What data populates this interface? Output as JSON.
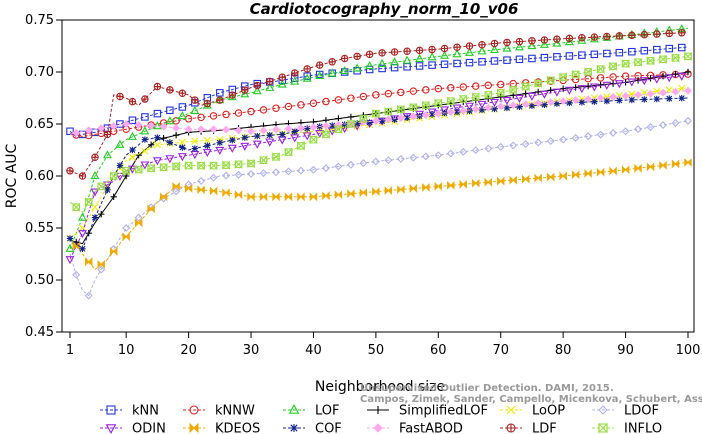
{
  "chart_data": {
    "type": "line",
    "title": "Cardiotocography_norm_10_v06",
    "xlabel": "Neighborhood size",
    "ylabel": "ROC AUC",
    "xlim": [
      1,
      100
    ],
    "ylim": [
      0.45,
      0.75
    ],
    "xticks": [
      1,
      10,
      20,
      30,
      40,
      50,
      60,
      70,
      80,
      90,
      100
    ],
    "yticks": [
      0.45,
      0.5,
      0.55,
      0.6,
      0.65,
      0.7,
      0.75
    ],
    "ytick_labels": [
      "0.45",
      "0.50",
      "0.55",
      "0.60",
      "0.65",
      "0.70",
      "0.75"
    ],
    "grid": false,
    "legend_position": "bottom",
    "watermark_lines": [
      "Unsupervised Outlier Detection. DAMI, 2015.",
      "Campos, Zimek, Sander, Campello, Micenkova, Schubert, Assent, Houle"
    ],
    "series": [
      {
        "name": "kNN",
        "color": "#2233dd",
        "marker": "square",
        "points": [
          [
            1,
            0.643
          ],
          [
            2,
            0.638
          ],
          [
            3,
            0.64
          ],
          [
            5,
            0.642
          ],
          [
            8,
            0.648
          ],
          [
            10,
            0.652
          ],
          [
            15,
            0.66
          ],
          [
            20,
            0.668
          ],
          [
            25,
            0.68
          ],
          [
            30,
            0.688
          ],
          [
            35,
            0.692
          ],
          [
            40,
            0.697
          ],
          [
            50,
            0.703
          ],
          [
            60,
            0.707
          ],
          [
            70,
            0.711
          ],
          [
            80,
            0.715
          ],
          [
            90,
            0.719
          ],
          [
            100,
            0.724
          ]
        ]
      },
      {
        "name": "kNNW",
        "color": "#dd2222",
        "marker": "circle",
        "points": [
          [
            1,
            0.641
          ],
          [
            3,
            0.638
          ],
          [
            5,
            0.64
          ],
          [
            8,
            0.643
          ],
          [
            10,
            0.645
          ],
          [
            15,
            0.65
          ],
          [
            20,
            0.655
          ],
          [
            30,
            0.662
          ],
          [
            40,
            0.67
          ],
          [
            50,
            0.678
          ],
          [
            60,
            0.684
          ],
          [
            70,
            0.688
          ],
          [
            80,
            0.692
          ],
          [
            90,
            0.696
          ],
          [
            100,
            0.698
          ]
        ]
      },
      {
        "name": "LOF",
        "color": "#22cc22",
        "marker": "triangle-up",
        "points": [
          [
            1,
            0.53
          ],
          [
            3,
            0.56
          ],
          [
            5,
            0.6
          ],
          [
            7,
            0.62
          ],
          [
            10,
            0.635
          ],
          [
            13,
            0.643
          ],
          [
            15,
            0.648
          ],
          [
            20,
            0.66
          ],
          [
            25,
            0.673
          ],
          [
            30,
            0.68
          ],
          [
            35,
            0.688
          ],
          [
            40,
            0.695
          ],
          [
            50,
            0.707
          ],
          [
            60,
            0.715
          ],
          [
            70,
            0.722
          ],
          [
            80,
            0.728
          ],
          [
            90,
            0.735
          ],
          [
            100,
            0.742
          ]
        ]
      },
      {
        "name": "SimplifiedLOF",
        "color": "#000000",
        "marker": "plus",
        "points": [
          [
            1,
            0.538
          ],
          [
            3,
            0.535
          ],
          [
            5,
            0.555
          ],
          [
            8,
            0.58
          ],
          [
            10,
            0.6
          ],
          [
            12,
            0.62
          ],
          [
            15,
            0.635
          ],
          [
            20,
            0.642
          ],
          [
            25,
            0.644
          ],
          [
            30,
            0.647
          ],
          [
            35,
            0.65
          ],
          [
            40,
            0.652
          ],
          [
            50,
            0.66
          ],
          [
            60,
            0.668
          ],
          [
            70,
            0.676
          ],
          [
            80,
            0.684
          ],
          [
            90,
            0.69
          ],
          [
            100,
            0.7
          ]
        ]
      },
      {
        "name": "LoOP",
        "color": "#eeee00",
        "marker": "x",
        "points": [
          [
            1,
            0.54
          ],
          [
            3,
            0.55
          ],
          [
            5,
            0.57
          ],
          [
            8,
            0.6
          ],
          [
            10,
            0.615
          ],
          [
            15,
            0.63
          ],
          [
            20,
            0.633
          ],
          [
            25,
            0.635
          ],
          [
            30,
            0.638
          ],
          [
            40,
            0.643
          ],
          [
            50,
            0.65
          ],
          [
            60,
            0.658
          ],
          [
            70,
            0.665
          ],
          [
            80,
            0.672
          ],
          [
            90,
            0.678
          ],
          [
            100,
            0.685
          ]
        ]
      },
      {
        "name": "LDOF",
        "color": "#b0b0ee",
        "marker": "diamond",
        "points": [
          [
            1,
            0.525
          ],
          [
            2,
            0.505
          ],
          [
            3,
            0.49
          ],
          [
            4,
            0.485
          ],
          [
            5,
            0.5
          ],
          [
            7,
            0.52
          ],
          [
            10,
            0.55
          ],
          [
            15,
            0.575
          ],
          [
            20,
            0.592
          ],
          [
            25,
            0.6
          ],
          [
            30,
            0.602
          ],
          [
            35,
            0.604
          ],
          [
            40,
            0.606
          ],
          [
            50,
            0.614
          ],
          [
            60,
            0.62
          ],
          [
            70,
            0.628
          ],
          [
            80,
            0.635
          ],
          [
            90,
            0.643
          ],
          [
            100,
            0.653
          ]
        ]
      },
      {
        "name": "ODIN",
        "color": "#9922dd",
        "marker": "triangle-down",
        "points": [
          [
            1,
            0.52
          ],
          [
            3,
            0.545
          ],
          [
            5,
            0.585
          ],
          [
            8,
            0.595
          ],
          [
            10,
            0.605
          ],
          [
            15,
            0.615
          ],
          [
            20,
            0.62
          ],
          [
            25,
            0.625
          ],
          [
            30,
            0.63
          ],
          [
            40,
            0.64
          ],
          [
            50,
            0.652
          ],
          [
            60,
            0.663
          ],
          [
            70,
            0.672
          ],
          [
            80,
            0.682
          ],
          [
            90,
            0.69
          ],
          [
            100,
            0.697
          ]
        ]
      },
      {
        "name": "KDEOS",
        "color": "#eeaa00",
        "marker": "bowtie",
        "points": [
          [
            1,
            0.54
          ],
          [
            3,
            0.525
          ],
          [
            5,
            0.51
          ],
          [
            7,
            0.52
          ],
          [
            9,
            0.535
          ],
          [
            12,
            0.555
          ],
          [
            15,
            0.575
          ],
          [
            18,
            0.59
          ],
          [
            20,
            0.588
          ],
          [
            25,
            0.585
          ],
          [
            30,
            0.58
          ],
          [
            35,
            0.58
          ],
          [
            40,
            0.58
          ],
          [
            50,
            0.585
          ],
          [
            60,
            0.59
          ],
          [
            70,
            0.595
          ],
          [
            80,
            0.6
          ],
          [
            90,
            0.606
          ],
          [
            100,
            0.613
          ]
        ]
      },
      {
        "name": "COF",
        "color": "#112288",
        "marker": "star",
        "points": [
          [
            1,
            0.54
          ],
          [
            3,
            0.53
          ],
          [
            5,
            0.56
          ],
          [
            8,
            0.6
          ],
          [
            10,
            0.62
          ],
          [
            13,
            0.635
          ],
          [
            15,
            0.637
          ],
          [
            20,
            0.625
          ],
          [
            25,
            0.632
          ],
          [
            30,
            0.638
          ],
          [
            35,
            0.64
          ],
          [
            40,
            0.647
          ],
          [
            50,
            0.652
          ],
          [
            60,
            0.66
          ],
          [
            70,
            0.665
          ],
          [
            80,
            0.67
          ],
          [
            90,
            0.673
          ],
          [
            100,
            0.675
          ]
        ]
      },
      {
        "name": "FastABOD",
        "color": "#ffaaee",
        "marker": "diamond-filled",
        "points": [
          [
            1,
            0.64
          ],
          [
            3,
            0.643
          ],
          [
            5,
            0.645
          ],
          [
            8,
            0.648
          ],
          [
            10,
            0.65
          ],
          [
            15,
            0.648
          ],
          [
            20,
            0.645
          ],
          [
            25,
            0.645
          ],
          [
            30,
            0.643
          ],
          [
            40,
            0.647
          ],
          [
            50,
            0.653
          ],
          [
            60,
            0.66
          ],
          [
            70,
            0.667
          ],
          [
            80,
            0.672
          ],
          [
            90,
            0.677
          ],
          [
            100,
            0.682
          ]
        ]
      },
      {
        "name": "LDF",
        "color": "#aa2222",
        "marker": "circle-plus",
        "points": [
          [
            1,
            0.605
          ],
          [
            3,
            0.6
          ],
          [
            5,
            0.618
          ],
          [
            7,
            0.64
          ],
          [
            8,
            0.678
          ],
          [
            10,
            0.675
          ],
          [
            12,
            0.668
          ],
          [
            14,
            0.68
          ],
          [
            15,
            0.686
          ],
          [
            20,
            0.678
          ],
          [
            22,
            0.668
          ],
          [
            25,
            0.673
          ],
          [
            30,
            0.685
          ],
          [
            35,
            0.695
          ],
          [
            40,
            0.705
          ],
          [
            45,
            0.713
          ],
          [
            50,
            0.718
          ],
          [
            60,
            0.722
          ],
          [
            70,
            0.728
          ],
          [
            80,
            0.732
          ],
          [
            90,
            0.735
          ],
          [
            100,
            0.738
          ]
        ]
      },
      {
        "name": "INFLO",
        "color": "#99dd44",
        "marker": "bowtie-open",
        "points": [
          [
            1,
            0.575
          ],
          [
            3,
            0.565
          ],
          [
            5,
            0.585
          ],
          [
            8,
            0.6
          ],
          [
            10,
            0.605
          ],
          [
            15,
            0.608
          ],
          [
            20,
            0.61
          ],
          [
            25,
            0.61
          ],
          [
            30,
            0.612
          ],
          [
            35,
            0.62
          ],
          [
            40,
            0.635
          ],
          [
            50,
            0.66
          ],
          [
            60,
            0.67
          ],
          [
            70,
            0.68
          ],
          [
            80,
            0.695
          ],
          [
            90,
            0.708
          ],
          [
            100,
            0.715
          ]
        ]
      }
    ]
  }
}
